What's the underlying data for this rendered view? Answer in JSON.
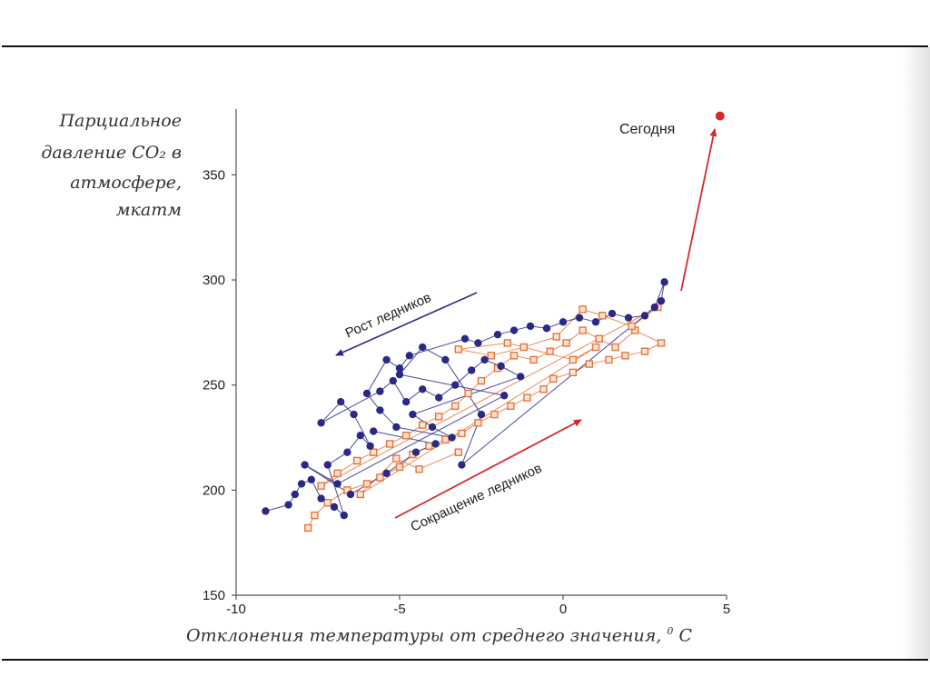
{
  "chart_data": {
    "type": "scatter",
    "ylabel_lines": [
      "Парциальное",
      "давление CO₂ в",
      "атмосфере,",
      "мкатм"
    ],
    "xlabel_text": "Отклонения температуры  от среднего значения, ",
    "xlabel_sup": "0",
    "xlabel_unit": " C",
    "xlim": [
      -10,
      5
    ],
    "ylim": [
      150,
      380
    ],
    "xticks": [
      "-10",
      "-5",
      "0",
      "5"
    ],
    "yticks": [
      "150",
      "200",
      "250",
      "300",
      "350"
    ],
    "annotations": {
      "today": "Сегодня",
      "glacier_growth": "Рост ледников",
      "glacier_retreat": "Сокращение ледников"
    },
    "colors": {
      "blue": "#2a2a86",
      "orange": "#e8743a",
      "red": "#d42a2a",
      "axis": "#555555"
    },
    "series": [
      {
        "color": "blue",
        "points": [
          [
            -9.1,
            190
          ],
          [
            -8.4,
            193
          ],
          [
            -8.2,
            198
          ],
          [
            -8.0,
            203
          ],
          [
            -7.7,
            205
          ],
          [
            -7.4,
            196
          ],
          [
            -7.0,
            192
          ],
          [
            -6.7,
            188
          ],
          [
            -7.2,
            212
          ],
          [
            -6.6,
            218
          ],
          [
            -6.2,
            226
          ],
          [
            -5.9,
            221
          ],
          [
            -6.4,
            236
          ],
          [
            -6.8,
            242
          ],
          [
            -7.4,
            232
          ],
          [
            -5.6,
            247
          ],
          [
            -5.2,
            252
          ],
          [
            -4.8,
            242
          ],
          [
            -4.3,
            248
          ],
          [
            -3.8,
            244
          ],
          [
            -3.3,
            250
          ],
          [
            -2.8,
            257
          ],
          [
            -2.4,
            262
          ],
          [
            -1.9,
            259
          ],
          [
            -1.3,
            254
          ],
          [
            -4.6,
            236
          ],
          [
            -4.0,
            230
          ],
          [
            -3.4,
            225
          ],
          [
            -5.1,
            230
          ],
          [
            -5.6,
            238
          ],
          [
            -6.0,
            246
          ],
          [
            -5.4,
            262
          ],
          [
            -5.0,
            258
          ],
          [
            -4.7,
            264
          ],
          [
            -3.0,
            272
          ],
          [
            -2.6,
            270
          ],
          [
            -2.0,
            274
          ],
          [
            -1.5,
            276
          ],
          [
            -1.0,
            278
          ],
          [
            -0.5,
            277
          ],
          [
            0.0,
            280
          ],
          [
            0.5,
            282
          ],
          [
            1.0,
            280
          ],
          [
            1.5,
            284
          ],
          [
            2.0,
            282
          ],
          [
            2.5,
            283
          ],
          [
            3.0,
            290
          ],
          [
            3.1,
            299
          ],
          [
            2.8,
            287
          ],
          [
            -3.1,
            212
          ],
          [
            -2.5,
            236
          ],
          [
            -3.6,
            262
          ],
          [
            -4.3,
            268
          ],
          [
            -5.0,
            255
          ],
          [
            -1.8,
            245
          ],
          [
            -6.9,
            203
          ],
          [
            -7.9,
            212
          ],
          [
            -6.5,
            198
          ],
          [
            -5.4,
            208
          ],
          [
            -4.5,
            218
          ],
          [
            -3.9,
            222
          ],
          [
            -5.8,
            228
          ]
        ]
      },
      {
        "color": "orange",
        "points": [
          [
            -7.8,
            182
          ],
          [
            -7.6,
            188
          ],
          [
            -7.2,
            194
          ],
          [
            -6.6,
            200
          ],
          [
            -6.0,
            203
          ],
          [
            -5.6,
            206
          ],
          [
            -5.0,
            211
          ],
          [
            -4.6,
            217
          ],
          [
            -4.1,
            221
          ],
          [
            -3.6,
            224
          ],
          [
            -3.1,
            227
          ],
          [
            -2.6,
            232
          ],
          [
            -2.1,
            236
          ],
          [
            -1.6,
            240
          ],
          [
            -1.1,
            244
          ],
          [
            -0.6,
            248
          ],
          [
            -0.3,
            253
          ],
          [
            0.3,
            256
          ],
          [
            0.8,
            260
          ],
          [
            1.4,
            262
          ],
          [
            1.9,
            264
          ],
          [
            2.5,
            266
          ],
          [
            3.0,
            270
          ],
          [
            2.2,
            276
          ],
          [
            1.6,
            268
          ],
          [
            1.1,
            272
          ],
          [
            0.6,
            276
          ],
          [
            0.1,
            270
          ],
          [
            -0.4,
            266
          ],
          [
            -0.9,
            262
          ],
          [
            -1.5,
            264
          ],
          [
            -2.0,
            258
          ],
          [
            -2.5,
            252
          ],
          [
            -2.9,
            246
          ],
          [
            -3.3,
            240
          ],
          [
            -3.8,
            235
          ],
          [
            -4.3,
            231
          ],
          [
            -4.8,
            226
          ],
          [
            -5.3,
            222
          ],
          [
            -5.8,
            218
          ],
          [
            -6.3,
            214
          ],
          [
            -6.9,
            208
          ],
          [
            -7.4,
            202
          ],
          [
            2.9,
            287
          ],
          [
            2.1,
            278
          ],
          [
            1.2,
            283
          ],
          [
            0.6,
            286
          ],
          [
            -0.2,
            273
          ],
          [
            -1.2,
            268
          ],
          [
            -2.2,
            264
          ],
          [
            -3.2,
            267
          ],
          [
            -1.7,
            270
          ],
          [
            0.3,
            262
          ],
          [
            1.0,
            268
          ],
          [
            -6.2,
            198
          ],
          [
            -5.1,
            215
          ],
          [
            -4.4,
            210
          ],
          [
            -3.2,
            218
          ]
        ]
      }
    ],
    "today_point": [
      4.8,
      378
    ]
  }
}
